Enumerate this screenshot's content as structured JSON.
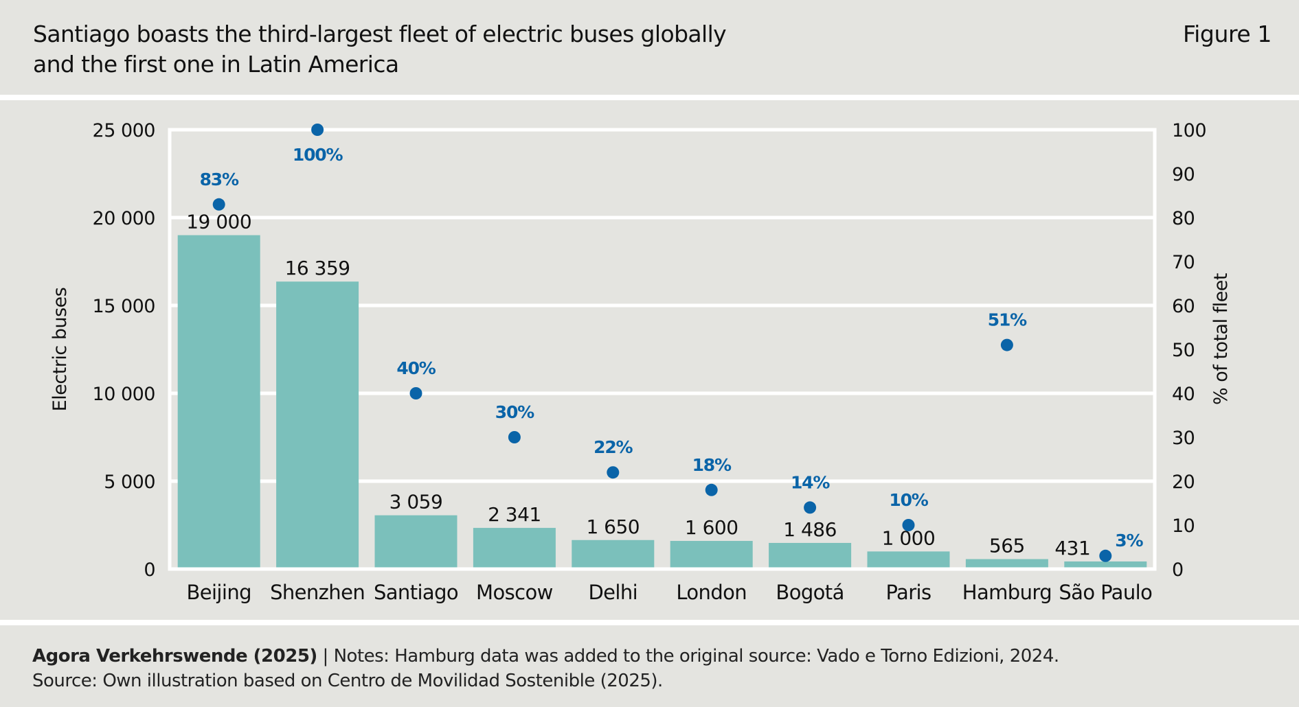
{
  "header": {
    "title_lines": [
      "Santiago boasts the third-largest fleet of electric buses globally",
      "and the first one in Latin America"
    ],
    "figure_label": "Figure 1"
  },
  "colors": {
    "background": "#e4e4e0",
    "bar": "#7bc0bb",
    "dot": "#0a64a8",
    "grid": "#ffffff",
    "text": "#111111"
  },
  "chart_data": {
    "type": "bar",
    "title": "Santiago boasts the third-largest fleet of electric buses globally and the first one in Latin America",
    "categories": [
      "Beijing",
      "Shenzhen",
      "Santiago",
      "Moscow",
      "Delhi",
      "London",
      "Bogotá",
      "Paris",
      "Hamburg",
      "São Paulo"
    ],
    "series": [
      {
        "name": "Electric buses",
        "type": "bar",
        "axis": "left",
        "values": [
          19000,
          16359,
          3059,
          2341,
          1650,
          1600,
          1486,
          1000,
          565,
          431
        ],
        "labels": [
          "19 000",
          "16 359",
          "3 059",
          "2 341",
          "1 650",
          "1 600",
          "1 486",
          "1 000",
          "565",
          "431"
        ]
      },
      {
        "name": "% of total fleet",
        "type": "scatter",
        "axis": "right",
        "values": [
          83,
          100,
          40,
          30,
          22,
          18,
          14,
          10,
          51,
          3
        ],
        "labels": [
          "83%",
          "100%",
          "40%",
          "30%",
          "22%",
          "18%",
          "14%",
          "10%",
          "51%",
          "3%"
        ]
      }
    ],
    "xlabel": "",
    "ylabel": "Electric buses",
    "y2label": "% of total fleet",
    "ylim": [
      0,
      25000
    ],
    "y2lim": [
      0,
      100
    ],
    "yticks": [
      0,
      5000,
      10000,
      15000,
      20000,
      25000
    ],
    "ytick_labels": [
      "0",
      "5 000",
      "10 000",
      "15 000",
      "20 000",
      "25 000"
    ],
    "y2ticks": [
      0,
      10,
      20,
      30,
      40,
      50,
      60,
      70,
      80,
      90,
      100
    ],
    "y2tick_labels": [
      "0",
      "10",
      "20",
      "30",
      "40",
      "50",
      "60",
      "70",
      "80",
      "90",
      "100"
    ],
    "grid": true,
    "legend": "none"
  },
  "footer": {
    "org": "Agora Verkehrswende (2025)",
    "notes": " | Notes: Hamburg data was added to the original source: Vado e Torno Edizioni, 2024.",
    "source": "Source: Own illustration based on Centro de Movilidad Sostenible (2025)."
  }
}
